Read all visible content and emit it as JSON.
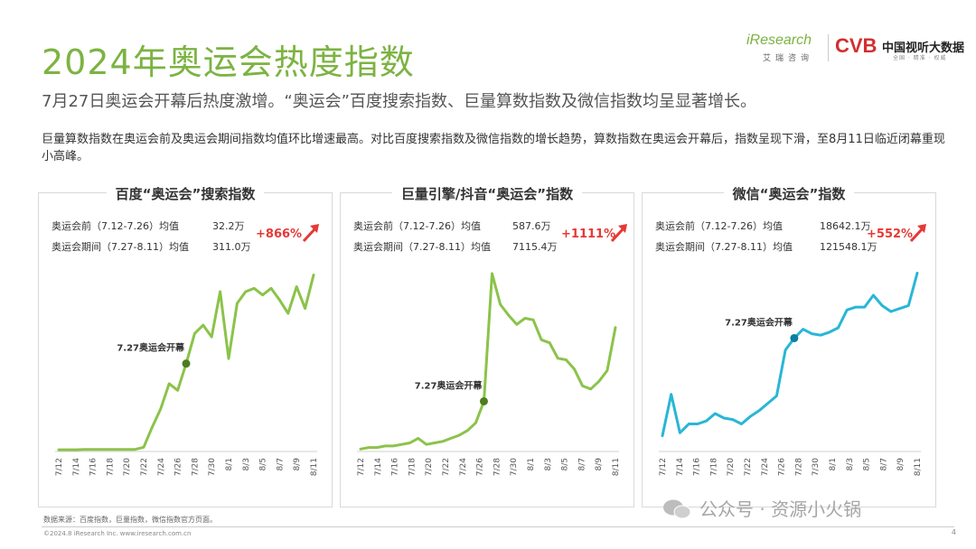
{
  "header": {
    "title": "2024年奥运会热度指数",
    "subtitle": "7月27日奥运会开幕后热度激增。“奥运会”百度搜索指数、巨量算数指数及微信指数均呈显著增长。",
    "description": "巨量算数指数在奥运会前及奥运会期间指数均值环比增速最高。对比百度搜索指数及微信指数的增长趋势，算数指数在奥运会开幕后，指数呈现下滑，至8月11日临近闭幕重现小高峰。"
  },
  "logos": {
    "iresearch_word": "iResearch",
    "iresearch_cn": "艾瑞咨询",
    "cvb_mark": "CVB",
    "cvb_name": "中国视听大数据",
    "cvb_sub": "全国 · 精准 · 权威"
  },
  "footer": {
    "source": "数据来源：百度指数，巨量指数，微信指数官方页面。",
    "copyright": "©2024.8 iResearch Inc. www.iresearch.com.cn",
    "page": "4",
    "watermark": "公众号 · 资源小火锅"
  },
  "colors": {
    "title_green": "#7cb342",
    "line_green": "#8bc34a",
    "line_blue": "#29b6d6",
    "pct_red": "#e53935"
  },
  "chart_data": [
    {
      "type": "line",
      "title": "百度“奥运会”搜索指数",
      "stats": [
        {
          "label": "奥运会前（7.12-7.26）均值",
          "value": "32.2万"
        },
        {
          "label": "奥运会期间（7.27-8.11）均值",
          "value": "311.0万"
        }
      ],
      "growth": "+866%",
      "annotation": {
        "label": "7.27奥运会开幕",
        "index": 15
      },
      "color": "#8bc34a",
      "tick_labels": [
        "7/12",
        "7/14",
        "7/16",
        "7/18",
        "7/20",
        "7/22",
        "7/24",
        "7/26",
        "7/28",
        "7/30",
        "8/1",
        "8/3",
        "8/5",
        "8/7",
        "8/9",
        "8/11"
      ],
      "values": [
        0.5,
        0.5,
        0.5,
        0.7,
        0.7,
        0.7,
        0.7,
        0.7,
        0.7,
        0.7,
        2,
        14,
        25,
        40,
        36,
        52,
        70,
        75,
        68,
        95,
        55,
        88,
        95,
        97,
        93,
        97,
        90,
        82,
        98,
        85,
        105
      ],
      "ylim": [
        0,
        115
      ]
    },
    {
      "type": "line",
      "title": "巨量引擎/抖音“奥运会”指数",
      "stats": [
        {
          "label": "奥运会前（7.12-7.26）均值",
          "value": "587.6万"
        },
        {
          "label": "奥运会期间（7.27-8.11）均值",
          "value": "7115.4万"
        }
      ],
      "growth": "+1111%",
      "annotation": {
        "label": "7.27奥运会开幕",
        "index": 15
      },
      "color": "#8bc34a",
      "tick_labels": [
        "7/12",
        "7/14",
        "7/16",
        "7/18",
        "7/20",
        "7/22",
        "7/24",
        "7/26",
        "7/28",
        "7/30",
        "8/1",
        "8/3",
        "8/5",
        "8/7",
        "8/9",
        "8/11"
      ],
      "values": [
        1,
        2,
        2,
        3,
        3,
        4,
        5,
        8,
        4,
        5,
        6,
        8,
        10,
        13,
        18,
        32,
        115,
        95,
        88,
        82,
        86,
        85,
        72,
        70,
        60,
        59,
        53,
        42,
        40,
        45,
        52,
        80
      ],
      "ylim": [
        0,
        125
      ]
    },
    {
      "type": "line",
      "title": "微信“奥运会”指数",
      "stats": [
        {
          "label": "奥运会前（7.12-7.26）均值",
          "value": "18642.1万"
        },
        {
          "label": "奥运会期间（7.27-8.11）均值",
          "value": "121548.1万"
        }
      ],
      "growth": "+552%",
      "annotation": {
        "label": "7.27奥运会开幕",
        "index": 15
      },
      "color": "#29b6d6",
      "tick_labels": [
        "7/12",
        "7/14",
        "7/16",
        "7/18",
        "7/20",
        "7/22",
        "7/24",
        "7/26",
        "7/28",
        "7/30",
        "8/1",
        "8/3",
        "8/5",
        "8/7",
        "8/9",
        "8/11"
      ],
      "values": [
        10,
        38,
        12,
        18,
        18,
        20,
        25,
        22,
        21,
        18,
        23,
        27,
        32,
        37,
        68,
        76,
        82,
        79,
        78,
        80,
        83,
        95,
        97,
        97,
        105,
        98,
        94,
        96,
        98,
        120
      ],
      "ylim": [
        0,
        130
      ]
    }
  ]
}
